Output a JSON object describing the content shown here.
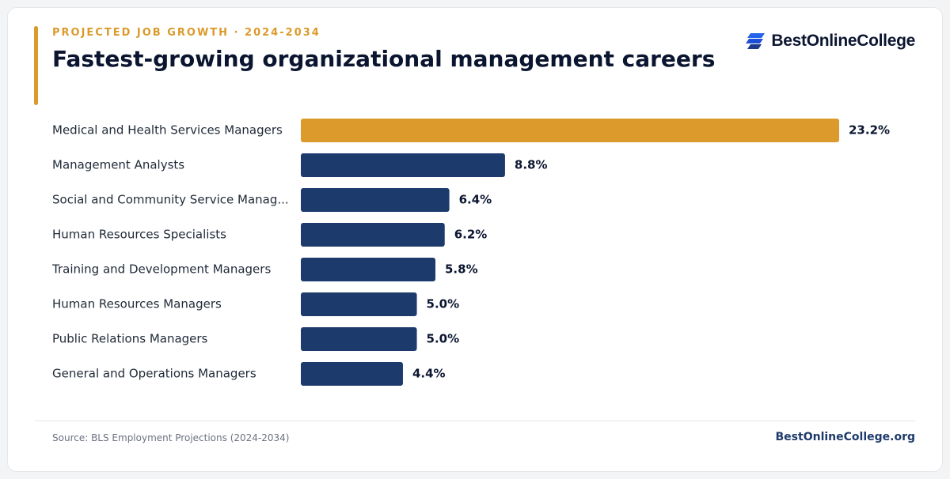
{
  "header": {
    "eyebrow": "PROJECTED JOB GROWTH · 2024-2034",
    "title": "Fastest-growing organizational management careers"
  },
  "brand": {
    "name": "BestOnlineCollege",
    "icon": "brand-stripes-icon"
  },
  "footer": {
    "source": "Source: BLS Employment Projections (2024-2034)",
    "site": "BestOnlineCollege.org"
  },
  "colors": {
    "highlight": "#db9a2b",
    "bar": "#1c3a6b",
    "accent": "#db9a2b",
    "brand_icon": "#2563eb"
  },
  "chart_data": {
    "type": "bar",
    "orientation": "horizontal",
    "categories": [
      "Medical and Health Services Managers",
      "Management Analysts",
      "Social and Community Service Manag...",
      "Human Resources Specialists",
      "Training and Development Managers",
      "Human Resources Managers",
      "Public Relations Managers",
      "General and Operations Managers"
    ],
    "values": [
      23.2,
      8.8,
      6.4,
      6.2,
      5.8,
      5.0,
      5.0,
      4.4
    ],
    "value_labels": [
      "23.2%",
      "8.8%",
      "6.4%",
      "6.2%",
      "5.8%",
      "5.0%",
      "5.0%",
      "4.4%"
    ],
    "highlight_index": 0,
    "xlim": [
      0,
      23.2
    ],
    "grid": false,
    "legend": "none"
  }
}
